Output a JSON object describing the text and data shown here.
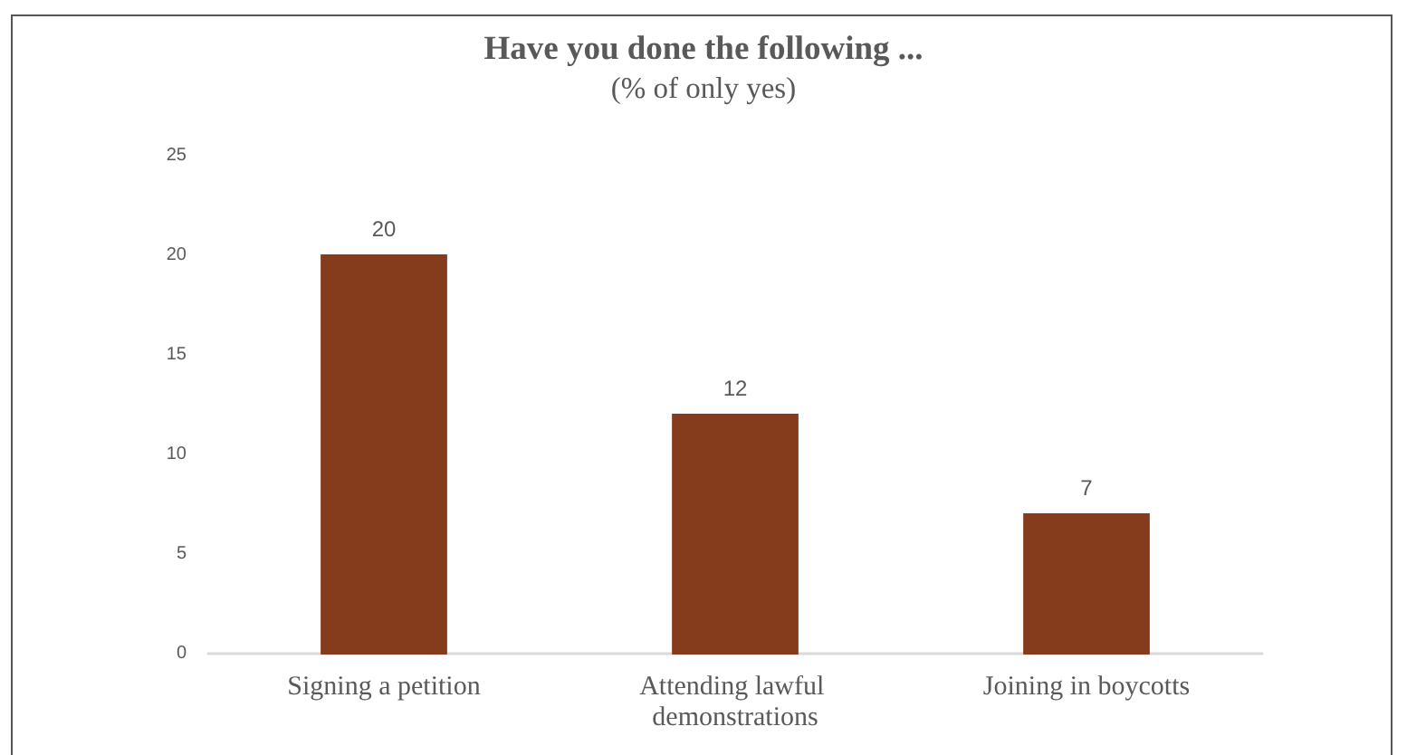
{
  "chart_data": {
    "type": "bar",
    "title": "Have you done the following ...",
    "subtitle": "(% of only yes)",
    "categories": [
      "Signing a petition",
      "Attending lawful demonstrations",
      "Joining in boycotts"
    ],
    "values": [
      20,
      12,
      7
    ],
    "color": "#843c1c",
    "ylim": [
      0,
      25
    ],
    "yticks": [
      0,
      5,
      10,
      15,
      20,
      25
    ],
    "data_labels": true
  }
}
